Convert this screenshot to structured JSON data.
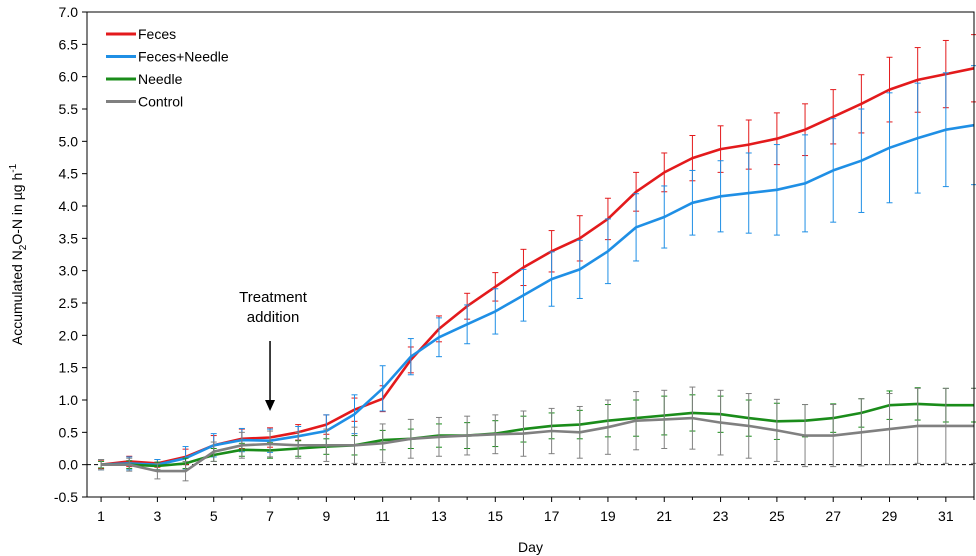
{
  "chart_data": {
    "type": "line",
    "xlabel": "Day",
    "ylabel": {
      "prefix": "Accumulated N",
      "sub": "2",
      "mid": "O-N in µg h",
      "sup": "-1"
    },
    "xlim": [
      0.5,
      32
    ],
    "ylim": [
      -0.5,
      7.0
    ],
    "x_ticks": [
      1,
      3,
      5,
      7,
      9,
      11,
      13,
      15,
      17,
      19,
      21,
      23,
      25,
      27,
      29,
      31
    ],
    "y_ticks": [
      "-0.5",
      "0.0",
      "0.5",
      "1.0",
      "1.5",
      "2.0",
      "2.5",
      "3.0",
      "3.5",
      "4.0",
      "4.5",
      "5.0",
      "5.5",
      "6.0",
      "6.5",
      "7.0"
    ],
    "baseline": 0.0,
    "legend_position": "top-left",
    "annotation": {
      "lines": [
        "Treatment",
        "addition"
      ],
      "x": 7
    },
    "x": [
      1,
      2,
      3,
      4,
      5,
      6,
      7,
      8,
      9,
      10,
      11,
      12,
      13,
      14,
      15,
      16,
      17,
      18,
      19,
      20,
      21,
      22,
      23,
      24,
      25,
      26,
      27,
      28,
      29,
      30,
      31,
      32
    ],
    "series": [
      {
        "name": "Feces",
        "color": "#e31a1c",
        "values": [
          0.0,
          0.05,
          0.02,
          0.12,
          0.3,
          0.4,
          0.42,
          0.5,
          0.62,
          0.85,
          1.02,
          1.62,
          2.1,
          2.45,
          2.75,
          3.05,
          3.3,
          3.5,
          3.8,
          4.22,
          4.52,
          4.74,
          4.88,
          4.95,
          5.04,
          5.18,
          5.38,
          5.58,
          5.8,
          5.95,
          6.04,
          6.13
        ],
        "errors": [
          0.06,
          0.08,
          0.06,
          0.12,
          0.15,
          0.15,
          0.15,
          0.12,
          0.15,
          0.18,
          0.2,
          0.2,
          0.2,
          0.2,
          0.22,
          0.28,
          0.32,
          0.35,
          0.32,
          0.3,
          0.3,
          0.35,
          0.36,
          0.38,
          0.4,
          0.4,
          0.42,
          0.45,
          0.5,
          0.5,
          0.52,
          0.52
        ]
      },
      {
        "name": "Feces+Needle",
        "color": "#1f8fe5",
        "values": [
          0.0,
          0.02,
          0.0,
          0.1,
          0.3,
          0.38,
          0.37,
          0.44,
          0.52,
          0.78,
          1.18,
          1.67,
          1.97,
          2.17,
          2.37,
          2.62,
          2.87,
          3.02,
          3.3,
          3.67,
          3.83,
          4.05,
          4.15,
          4.2,
          4.25,
          4.35,
          4.55,
          4.7,
          4.9,
          5.05,
          5.18,
          5.25
        ],
        "errors": [
          0.08,
          0.1,
          0.08,
          0.18,
          0.18,
          0.18,
          0.18,
          0.15,
          0.25,
          0.3,
          0.35,
          0.28,
          0.3,
          0.3,
          0.35,
          0.4,
          0.42,
          0.45,
          0.5,
          0.52,
          0.48,
          0.5,
          0.55,
          0.62,
          0.7,
          0.75,
          0.8,
          0.8,
          0.85,
          0.85,
          0.88,
          0.92
        ]
      },
      {
        "name": "Needle",
        "color": "#1a8c1a",
        "values": [
          0.0,
          0.0,
          -0.02,
          0.02,
          0.15,
          0.23,
          0.22,
          0.25,
          0.28,
          0.3,
          0.38,
          0.4,
          0.45,
          0.45,
          0.48,
          0.55,
          0.6,
          0.62,
          0.68,
          0.72,
          0.76,
          0.8,
          0.78,
          0.72,
          0.67,
          0.68,
          0.72,
          0.8,
          0.92,
          0.94,
          0.92,
          0.92
        ],
        "errors": [
          0.05,
          0.06,
          0.06,
          0.08,
          0.1,
          0.1,
          0.12,
          0.12,
          0.12,
          0.15,
          0.15,
          0.15,
          0.18,
          0.2,
          0.2,
          0.2,
          0.2,
          0.22,
          0.25,
          0.28,
          0.3,
          0.28,
          0.28,
          0.28,
          0.28,
          0.25,
          0.22,
          0.22,
          0.22,
          0.25,
          0.26,
          0.26
        ]
      },
      {
        "name": "Control",
        "color": "#808080",
        "values": [
          0.0,
          0.0,
          -0.1,
          -0.1,
          0.2,
          0.3,
          0.32,
          0.3,
          0.3,
          0.3,
          0.33,
          0.4,
          0.43,
          0.45,
          0.47,
          0.48,
          0.52,
          0.5,
          0.58,
          0.68,
          0.7,
          0.72,
          0.65,
          0.6,
          0.53,
          0.45,
          0.45,
          0.5,
          0.55,
          0.6,
          0.6,
          0.6
        ],
        "errors": [
          0.08,
          0.1,
          0.12,
          0.15,
          0.15,
          0.2,
          0.2,
          0.2,
          0.25,
          0.28,
          0.3,
          0.3,
          0.3,
          0.3,
          0.3,
          0.35,
          0.35,
          0.4,
          0.42,
          0.45,
          0.45,
          0.48,
          0.5,
          0.5,
          0.48,
          0.48,
          0.48,
          0.52,
          0.55,
          0.58,
          0.58,
          0.58
        ]
      }
    ]
  }
}
